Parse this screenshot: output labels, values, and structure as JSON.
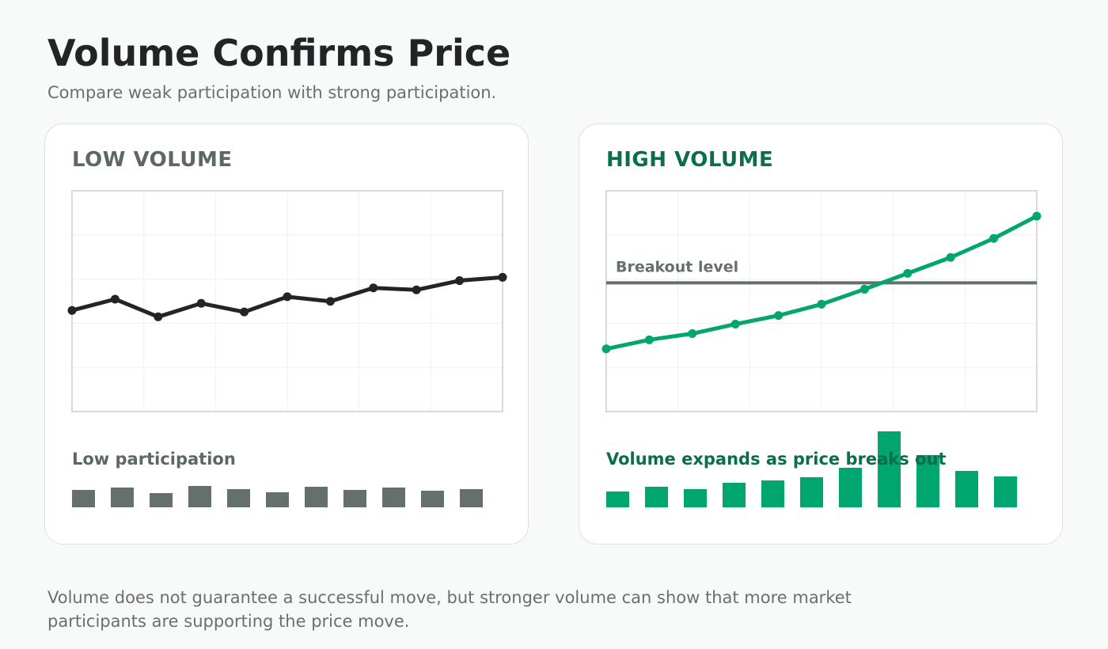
{
  "header": {
    "title": "Volume Confirms Price",
    "subtitle": "Compare weak participation with strong participation."
  },
  "footer": {
    "note": "Volume does not guarantee a successful move, but stronger volume can show that more market participants are supporting the price move."
  },
  "colors": {
    "low_price_line": "#222426",
    "low_volume_bar": "#65706b",
    "high_price_line": "#00a66e",
    "high_volume_bar": "#00a66e",
    "breakout_line": "#65706b",
    "grid": "#eef1f0",
    "frame": "#d5dbda"
  },
  "chart_data": [
    {
      "type": "line",
      "title": "LOW VOLUME",
      "x": [
        1,
        2,
        3,
        4,
        5,
        6,
        7,
        8,
        9,
        10,
        11
      ],
      "series": [
        {
          "values": [
            45.8,
            50.9,
            42.9,
            49.0,
            45.1,
            52.0,
            49.9,
            56.0,
            55.1,
            59.3,
            60.8
          ]
        }
      ],
      "ylim": [
        0,
        100
      ],
      "grid": true,
      "volume": {
        "label": "Low participation",
        "values": [
          22,
          25,
          18,
          27,
          23,
          19,
          26,
          22,
          25,
          21,
          23
        ]
      }
    },
    {
      "type": "line",
      "title": "HIGH VOLUME",
      "x": [
        1,
        2,
        3,
        4,
        5,
        6,
        7,
        8,
        9,
        10,
        11
      ],
      "series": [
        {
          "values": [
            28.4,
            32.5,
            35.3,
            39.6,
            43.5,
            48.6,
            55.4,
            62.6,
            69.8,
            78.4,
            88.5
          ]
        }
      ],
      "ylim": [
        0,
        100
      ],
      "grid": true,
      "breakout": {
        "label": "Breakout level",
        "value": 58.3
      },
      "volume": {
        "label": "Volume expands as price breaks out",
        "values": [
          20,
          26,
          23,
          31,
          34,
          38,
          50,
          96,
          66,
          46,
          39
        ]
      }
    }
  ]
}
